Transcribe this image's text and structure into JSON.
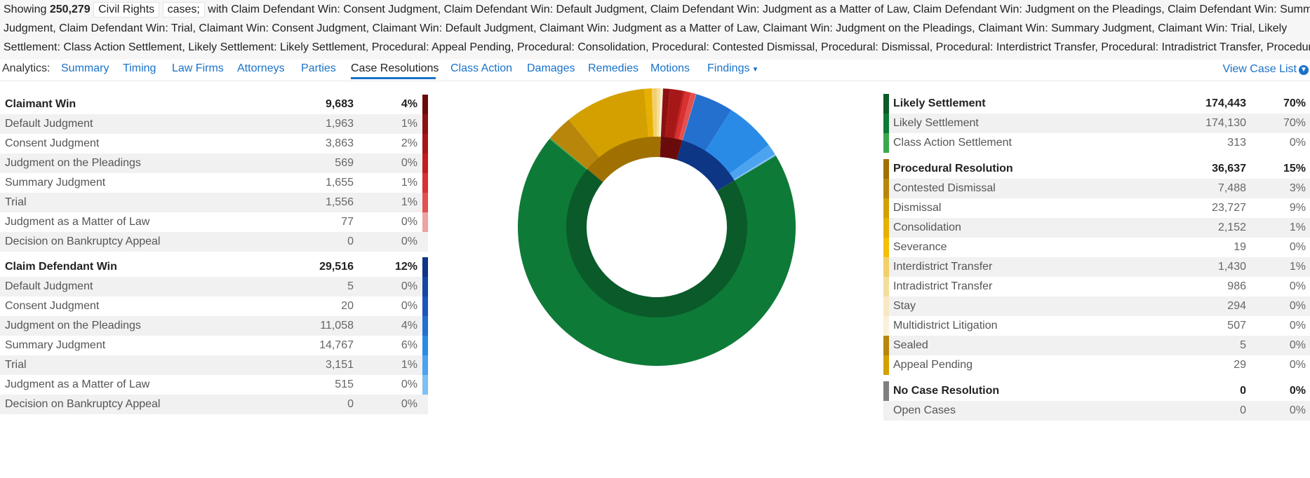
{
  "filter": {
    "showing_label": "Showing",
    "count": "250,279",
    "case_type": "Civil Rights",
    "cases_label": "cases;",
    "line1_rest": "with Claim Defendant Win: Consent Judgment, Claim Defendant Win: Default Judgment, Claim Defendant Win: Judgment as a Matter of Law, Claim Defendant Win: Judgment on the Pleadings, Claim Defendant Win: Summary",
    "line2": "Judgment, Claim Defendant Win: Trial, Claimant Win: Consent Judgment, Claimant Win: Default Judgment, Claimant Win: Judgment as a Matter of Law, Claimant Win: Judgment on the Pleadings, Claimant Win: Summary Judgment, Claimant Win: Trial, Likely",
    "line3": "Settlement: Class Action Settlement, Likely Settlement: Likely Settlement, Procedural: Appeal Pending, Procedural: Consolidation, Procedural: Contested Dismissal, Procedural: Dismissal, Procedural: Interdistrict Transfer, Procedural: Intradistrict Transfer, Procedural:"
  },
  "nav": {
    "label": "Analytics:",
    "tabs": [
      "Summary",
      "Timing",
      "Law Firms",
      "Attorneys",
      "Parties",
      "Case Resolutions",
      "Class Action",
      "Damages",
      "Remedies",
      "Motions",
      "Findings"
    ],
    "active_tab": "Case Resolutions",
    "view_case_list": "View Case List"
  },
  "left_table": {
    "claimant_win": {
      "label": "Claimant Win",
      "count": "9,683",
      "pct": "4%",
      "color": "#6a0b0b",
      "rows": [
        {
          "label": "Default Judgment",
          "count": "1,963",
          "pct": "1%",
          "color": "#8c1111"
        },
        {
          "label": "Consent Judgment",
          "count": "3,863",
          "pct": "2%",
          "color": "#a81717"
        },
        {
          "label": "Judgment on the Pleadings",
          "count": "569",
          "pct": "0%",
          "color": "#c21d1d"
        },
        {
          "label": "Summary Judgment",
          "count": "1,655",
          "pct": "1%",
          "color": "#d93131"
        },
        {
          "label": "Trial",
          "count": "1,556",
          "pct": "1%",
          "color": "#e35050"
        },
        {
          "label": "Judgment as a Matter of Law",
          "count": "77",
          "pct": "0%",
          "color": "#eba3a3"
        },
        {
          "label": "Decision on Bankruptcy Appeal",
          "count": "0",
          "pct": "0%",
          "color": ""
        }
      ]
    },
    "defendant_win": {
      "label": "Claim Defendant Win",
      "count": "29,516",
      "pct": "12%",
      "color": "#0d3685",
      "rows": [
        {
          "label": "Default Judgment",
          "count": "5",
          "pct": "0%",
          "color": "#1347a5"
        },
        {
          "label": "Consent Judgment",
          "count": "20",
          "pct": "0%",
          "color": "#1a57bd"
        },
        {
          "label": "Judgment on the Pleadings",
          "count": "11,058",
          "pct": "4%",
          "color": "#2470cf"
        },
        {
          "label": "Summary Judgment",
          "count": "14,767",
          "pct": "6%",
          "color": "#2a8be6"
        },
        {
          "label": "Trial",
          "count": "3,151",
          "pct": "1%",
          "color": "#4ca3ef"
        },
        {
          "label": "Judgment as a Matter of Law",
          "count": "515",
          "pct": "0%",
          "color": "#7cc0f5"
        },
        {
          "label": "Decision on Bankruptcy Appeal",
          "count": "0",
          "pct": "0%",
          "color": ""
        }
      ]
    }
  },
  "right_table": {
    "likely_settlement": {
      "label": "Likely Settlement",
      "count": "174,443",
      "pct": "70%",
      "color": "#0b5a2a",
      "rows": [
        {
          "label": "Likely Settlement",
          "count": "174,130",
          "pct": "70%",
          "color": "#0e7a37"
        },
        {
          "label": "Class Action Settlement",
          "count": "313",
          "pct": "0%",
          "color": "#3aa94d"
        }
      ]
    },
    "procedural": {
      "label": "Procedural Resolution",
      "count": "36,637",
      "pct": "15%",
      "color": "#a07000",
      "rows": [
        {
          "label": "Contested Dismissal",
          "count": "7,488",
          "pct": "3%",
          "color": "#b8860b"
        },
        {
          "label": "Dismissal",
          "count": "23,727",
          "pct": "9%",
          "color": "#d4a000"
        },
        {
          "label": "Consolidation",
          "count": "2,152",
          "pct": "1%",
          "color": "#e6b000"
        },
        {
          "label": "Severance",
          "count": "19",
          "pct": "0%",
          "color": "#f5c000"
        },
        {
          "label": "Interdistrict Transfer",
          "count": "1,430",
          "pct": "1%",
          "color": "#f2cf6a"
        },
        {
          "label": "Intradistrict Transfer",
          "count": "986",
          "pct": "0%",
          "color": "#f4de9c"
        },
        {
          "label": "Stay",
          "count": "294",
          "pct": "0%",
          "color": "#f7e9c3"
        },
        {
          "label": "Multidistrict Litigation",
          "count": "507",
          "pct": "0%",
          "color": "#faf1dc"
        },
        {
          "label": "Sealed",
          "count": "5",
          "pct": "0%",
          "color": "#b8860b"
        },
        {
          "label": "Appeal Pending",
          "count": "29",
          "pct": "0%",
          "color": "#d4a000"
        }
      ]
    },
    "no_resolution": {
      "label": "No Case Resolution",
      "count": "0",
      "pct": "0%",
      "color": "#808080",
      "rows": [
        {
          "label": "Open Cases",
          "count": "0",
          "pct": "0%",
          "color": ""
        }
      ]
    }
  },
  "chart_data": {
    "type": "pie",
    "style": "nested donut",
    "inner_ring": [
      {
        "name": "Likely Settlement",
        "value": 174443,
        "color": "#0b5a2a"
      },
      {
        "name": "Procedural Resolution",
        "value": 36637,
        "color": "#a07000"
      },
      {
        "name": "Claimant Win",
        "value": 9683,
        "color": "#6a0b0b"
      },
      {
        "name": "Claim Defendant Win",
        "value": 29516,
        "color": "#0d3685"
      }
    ],
    "outer_ring": [
      {
        "name": "Likely Settlement",
        "value": 174130,
        "color": "#0e7a37"
      },
      {
        "name": "Class Action Settlement",
        "value": 313,
        "color": "#3aa94d"
      },
      {
        "name": "Contested Dismissal",
        "value": 7488,
        "color": "#b8860b"
      },
      {
        "name": "Dismissal",
        "value": 23727,
        "color": "#d4a000"
      },
      {
        "name": "Consolidation",
        "value": 2152,
        "color": "#e6b000"
      },
      {
        "name": "Severance",
        "value": 19,
        "color": "#f5c000"
      },
      {
        "name": "Interdistrict Transfer",
        "value": 1430,
        "color": "#f2cf6a"
      },
      {
        "name": "Intradistrict Transfer",
        "value": 986,
        "color": "#f4de9c"
      },
      {
        "name": "Stay",
        "value": 294,
        "color": "#f7e9c3"
      },
      {
        "name": "Multidistrict Litigation",
        "value": 507,
        "color": "#faf1dc"
      },
      {
        "name": "Sealed",
        "value": 5,
        "color": "#b8860b"
      },
      {
        "name": "Appeal Pending",
        "value": 29,
        "color": "#d4a000"
      },
      {
        "name": "Default Judgment",
        "value": 1963,
        "color": "#8c1111"
      },
      {
        "name": "Consent Judgment",
        "value": 3863,
        "color": "#a81717"
      },
      {
        "name": "Judgment on the Pleadings",
        "value": 569,
        "color": "#c21d1d"
      },
      {
        "name": "Summary Judgment",
        "value": 1655,
        "color": "#d93131"
      },
      {
        "name": "Trial",
        "value": 1556,
        "color": "#e35050"
      },
      {
        "name": "Judgment as a Matter of Law",
        "value": 77,
        "color": "#eba3a3"
      },
      {
        "name": "Default Judgment",
        "value": 5,
        "color": "#1347a5"
      },
      {
        "name": "Consent Judgment",
        "value": 20,
        "color": "#1a57bd"
      },
      {
        "name": "Judgment on the Pleadings",
        "value": 11058,
        "color": "#2470cf"
      },
      {
        "name": "Summary Judgment",
        "value": 14767,
        "color": "#2a8be6"
      },
      {
        "name": "Trial",
        "value": 3151,
        "color": "#4ca3ef"
      },
      {
        "name": "Judgment as a Matter of Law",
        "value": 515,
        "color": "#7cc0f5"
      }
    ]
  }
}
